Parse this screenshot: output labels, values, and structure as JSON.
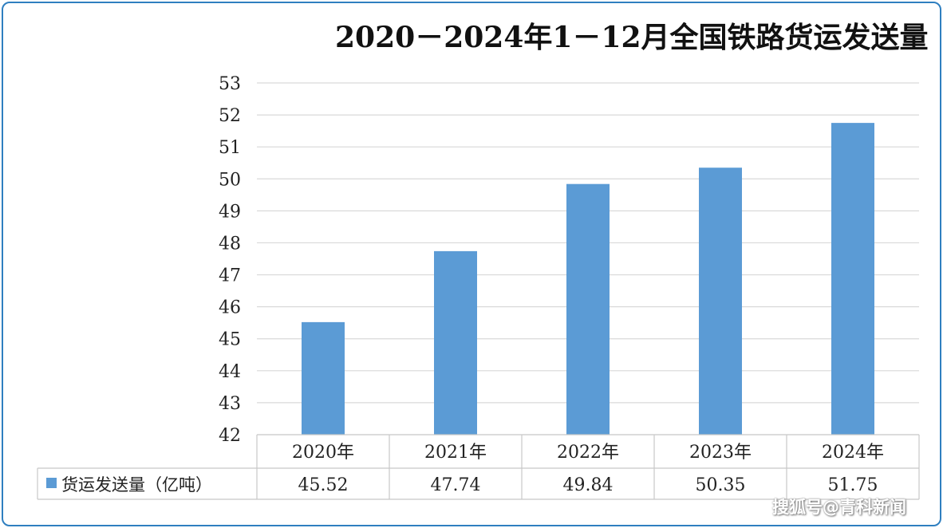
{
  "chart_data": {
    "type": "bar",
    "title": "2020－2024年1－12月全国铁路货运发送量",
    "categories": [
      "2020年",
      "2021年",
      "2022年",
      "2023年",
      "2024年"
    ],
    "series": [
      {
        "name": "货运发送量（亿吨）",
        "values": [
          45.52,
          47.74,
          49.84,
          50.35,
          51.75
        ],
        "value_labels": [
          "45.52",
          "47.74",
          "49.84",
          "50.35",
          "51.75"
        ],
        "color": "#5b9bd5"
      }
    ],
    "ylim": [
      42,
      53
    ],
    "yticks": [
      "42",
      "43",
      "44",
      "45",
      "46",
      "47",
      "48",
      "49",
      "50",
      "51",
      "52",
      "53"
    ],
    "grid": true,
    "legend": "data-table-left"
  },
  "watermark": "搜狐号@青科新闻"
}
